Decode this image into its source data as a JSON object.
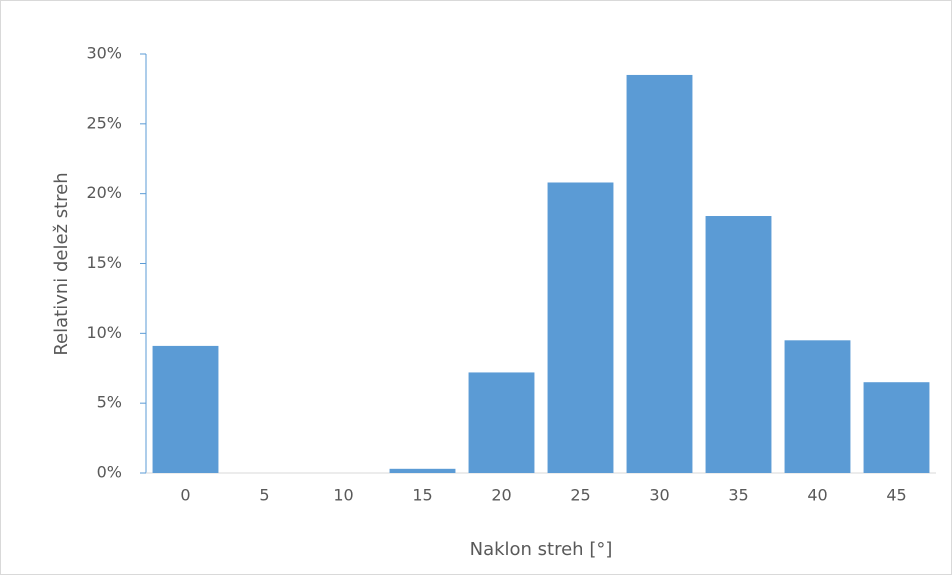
{
  "chart_data": {
    "type": "bar",
    "x_label": "Naklon streh [°]",
    "y_label": "Relativni delež streh",
    "categories": [
      "0",
      "5",
      "10",
      "15",
      "20",
      "25",
      "30",
      "35",
      "40",
      "45"
    ],
    "values": [
      9.1,
      0,
      0,
      0.3,
      7.2,
      20.8,
      28.5,
      18.4,
      9.5,
      6.5
    ],
    "color": "#5b9bd5",
    "ylim": [
      0,
      30
    ],
    "yticks": [
      {
        "value": 0,
        "label": "0%"
      },
      {
        "value": 5,
        "label": "5%"
      },
      {
        "value": 10,
        "label": "10%"
      },
      {
        "value": 15,
        "label": "15%"
      },
      {
        "value": 20,
        "label": "20%"
      },
      {
        "value": 25,
        "label": "25%"
      },
      {
        "value": 30,
        "label": "30%"
      }
    ],
    "grid": false
  }
}
